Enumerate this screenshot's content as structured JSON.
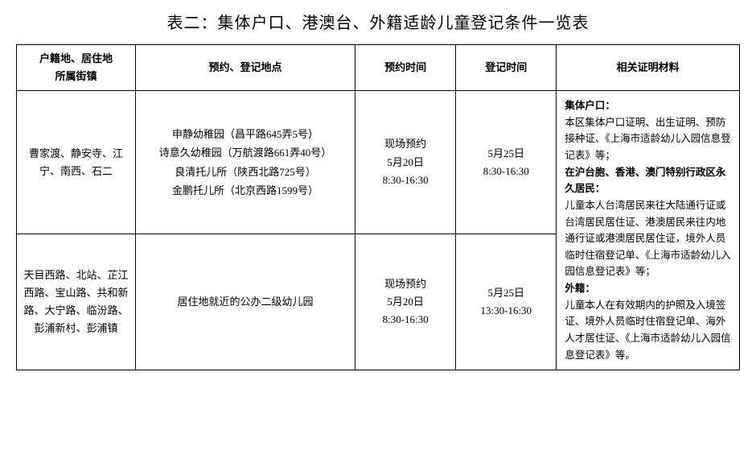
{
  "title": "表二：集体户口、港澳台、外籍适龄儿童登记条件一览表",
  "headers": {
    "col1": "户籍地、居住地\n所属街镇",
    "col2": "预约、登记地点",
    "col3": "预约时间",
    "col4": "登记时间",
    "col5": "相关证明材料"
  },
  "rows": [
    {
      "street": "曹家渡、静安寺、江宁、南西、石二",
      "location": "申静幼稚园（昌平路645弄5号）\n诗意久幼稚园（万航渡路661弄40号）\n良清托儿所（陕西北路725号）\n金鹏托儿所（北京西路1599号）",
      "appointment": "现场预约\n5月20日\n8:30-16:30",
      "register": "5月25日\n8:30-16:30"
    },
    {
      "street": "天目西路、北站、芷江西路、宝山路、共和新路、大宁路、临汾路、彭浦新村、彭浦镇",
      "location": "居住地就近的公办二级幼儿园",
      "appointment": "现场预约\n5月20日\n8:30-16:30",
      "register": "5月25日\n13:30-16:30"
    }
  ],
  "materials": {
    "h1": "集体户口：",
    "p1": "本区集体户口证明、出生证明、预防接种证、《上海市适龄幼儿入园信息登记表》等；",
    "h2": "在沪台胞、香港、澳门特别行政区永久居民：",
    "p2": "儿童本人台湾居民来往大陆通行证或台湾居民居住证、港澳居民来往内地通行证或港澳居民居住证，境外人员临时住宿登记单、《上海市适龄幼儿入园信息登记表》等；",
    "h3": "外籍：",
    "p3": "儿童本人在有效期内的护照及入境签证、境外人员临时住宿登记单、海外人才居住证、《上海市适龄幼儿入园信息登记表》等。"
  },
  "style": {
    "border_color": "#000000",
    "background": "#ffffff",
    "title_fontsize": 20,
    "cell_fontsize": 13,
    "materials_fontsize": 12.5,
    "font_family": "SimSun"
  }
}
